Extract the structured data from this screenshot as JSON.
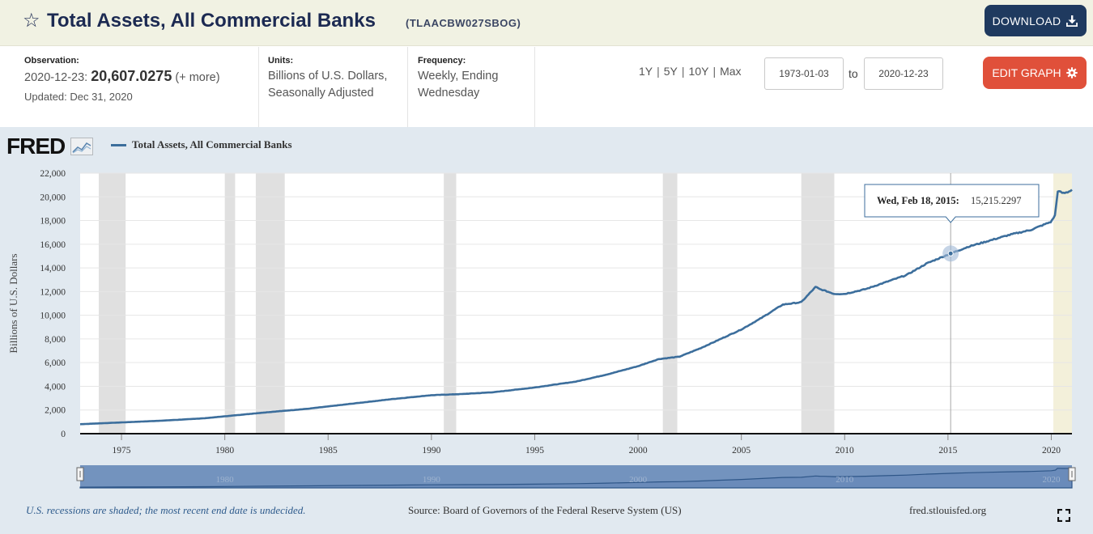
{
  "header": {
    "title": "Total Assets, All Commercial Banks",
    "series_id": "(TLAACBW027SBOG)",
    "star_icon": "star-outline-icon",
    "download_label": "DOWNLOAD",
    "download_icon": "download-icon"
  },
  "meta": {
    "observation_label": "Observation:",
    "observation_date": "2020-12-23:",
    "observation_value": "20,607.0275",
    "observation_more": "(+ more)",
    "updated": "Updated: Dec 31, 2020",
    "units_label": "Units:",
    "units_value": "Billions of U.S. Dollars, Seasonally Adjusted",
    "frequency_label": "Frequency:",
    "frequency_value": "Weekly, Ending Wednesday",
    "range_1y": "1Y",
    "range_5y": "5Y",
    "range_10y": "10Y",
    "range_max": "Max",
    "range_sep": "|",
    "start_date": "1973-01-03",
    "to_label": "to",
    "end_date": "2020-12-23",
    "edit_label": "EDIT GRAPH",
    "edit_icon": "gear-icon"
  },
  "chart": {
    "logo": "FRED",
    "legend": "Total Assets, All Commercial Banks",
    "tooltip_date": "Wed, Feb 18, 2015:",
    "tooltip_value": "15,215.2297",
    "footer_note": "U.S. recessions are shaded; the most recent end date is undecided.",
    "footer_source": "Source: Board of Governors of the Federal Reserve System (US)",
    "footer_site": "fred.stlouisfed.org",
    "fullscreen_icon": "fullscreen-icon",
    "navigator_labels": [
      "1980",
      "1990",
      "2000",
      "2010",
      "2020"
    ]
  },
  "chart_data": {
    "type": "line",
    "ylabel": "Billions of U.S. Dollars",
    "xlim": [
      1973.0,
      2021.0
    ],
    "ylim": [
      0,
      22000
    ],
    "y_ticks": [
      "0",
      "2,000",
      "4,000",
      "6,000",
      "8,000",
      "10,000",
      "12,000",
      "14,000",
      "16,000",
      "18,000",
      "20,000",
      "22,000"
    ],
    "x_ticks": [
      "1975",
      "1980",
      "1985",
      "1990",
      "1995",
      "2000",
      "2005",
      "2010",
      "2015",
      "2020"
    ],
    "recessions": [
      [
        1973.9,
        1975.2
      ],
      [
        1980.0,
        1980.5
      ],
      [
        1981.5,
        1982.9
      ],
      [
        1990.6,
        1991.2
      ],
      [
        2001.2,
        2001.9
      ],
      [
        2007.9,
        2009.5
      ],
      [
        2020.1,
        2021.0
      ]
    ],
    "colors": {
      "line": "#3c6e9c",
      "recession": "#e0e0e0",
      "last_recession": "#f3f0da"
    },
    "series": [
      {
        "name": "Total Assets, All Commercial Banks",
        "x": [
          1973.0,
          1975.0,
          1977.0,
          1979.0,
          1980.5,
          1982.0,
          1984.0,
          1986.0,
          1988.0,
          1990.0,
          1991.5,
          1993.0,
          1995.0,
          1997.0,
          1998.5,
          2000.0,
          2001.0,
          2002.0,
          2003.0,
          2004.0,
          2005.0,
          2006.0,
          2007.0,
          2007.9,
          2008.6,
          2008.8,
          2009.0,
          2009.5,
          2010.0,
          2011.0,
          2012.0,
          2013.0,
          2014.0,
          2015.13,
          2016.0,
          2017.0,
          2018.0,
          2019.0,
          2020.0,
          2020.2,
          2020.3,
          2020.6,
          2020.8,
          2021.0
        ],
        "values": [
          800,
          950,
          1100,
          1300,
          1550,
          1800,
          2100,
          2500,
          2900,
          3250,
          3350,
          3500,
          3900,
          4400,
          5000,
          5700,
          6300,
          6500,
          7200,
          8000,
          8800,
          9800,
          10900,
          11100,
          12400,
          12200,
          12100,
          11800,
          11800,
          12200,
          12800,
          13400,
          14400,
          15215.2297,
          15800,
          16300,
          16800,
          17200,
          17900,
          18500,
          20500,
          20300,
          20400,
          20607.0275
        ]
      }
    ]
  }
}
